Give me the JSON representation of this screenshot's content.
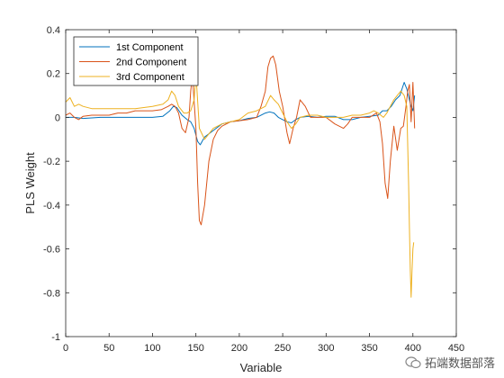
{
  "chart_data": {
    "type": "line",
    "title": "",
    "xlabel": "Variable",
    "ylabel": "PLS Weight",
    "xlim": [
      0,
      450
    ],
    "ylim": [
      -1,
      0.4
    ],
    "xticks": [
      0,
      50,
      100,
      150,
      200,
      250,
      300,
      350,
      400,
      450
    ],
    "yticks": [
      -1,
      -0.8,
      -0.6,
      -0.4,
      -0.2,
      0,
      0.2,
      0.4
    ],
    "xtick_labels": [
      "0",
      "50",
      "100",
      "150",
      "200",
      "250",
      "300",
      "350",
      "400",
      "450"
    ],
    "ytick_labels": [
      "-1",
      "-0.8",
      "-0.6",
      "-0.4",
      "-0.2",
      "0",
      "0.2",
      "0.4"
    ],
    "grid": false,
    "legend_position": "top-left",
    "series": [
      {
        "name": "1st Component",
        "color": "#0072BD",
        "x": [
          0,
          10,
          20,
          40,
          60,
          80,
          100,
          112,
          120,
          124,
          128,
          134,
          140,
          144,
          148,
          152,
          155,
          160,
          170,
          180,
          190,
          200,
          210,
          220,
          230,
          235,
          240,
          245,
          250,
          255,
          260,
          265,
          270,
          280,
          290,
          300,
          310,
          320,
          330,
          340,
          350,
          360,
          365,
          370,
          375,
          380,
          385,
          390,
          393,
          396,
          398,
          400,
          402
        ],
        "y": [
          0,
          0,
          -0.005,
          0,
          0,
          0,
          0,
          0.005,
          0.03,
          0.05,
          0.045,
          0.01,
          -0.01,
          -0.02,
          -0.05,
          -0.11,
          -0.125,
          -0.09,
          -0.06,
          -0.03,
          -0.02,
          -0.015,
          -0.005,
          0,
          0.02,
          0.025,
          0.02,
          0.0,
          -0.01,
          -0.02,
          -0.025,
          -0.01,
          0,
          0.005,
          0,
          0.005,
          0.005,
          -0.01,
          -0.01,
          0,
          0.005,
          0.01,
          0.03,
          0.03,
          0.05,
          0.08,
          0.1,
          0.16,
          0.13,
          0.08,
          0.05,
          0.03,
          0.1
        ]
      },
      {
        "name": "2nd Component",
        "color": "#D95319",
        "x": [
          0,
          5,
          10,
          15,
          20,
          30,
          40,
          50,
          60,
          70,
          80,
          90,
          100,
          110,
          118,
          122,
          126,
          130,
          134,
          138,
          142,
          144,
          146,
          150,
          152,
          154,
          156,
          160,
          165,
          170,
          175,
          180,
          190,
          200,
          210,
          220,
          225,
          230,
          233,
          236,
          239,
          242,
          246,
          250,
          255,
          258,
          262,
          266,
          270,
          276,
          282,
          288,
          295,
          300,
          310,
          320,
          325,
          330,
          340,
          350,
          358,
          362,
          365,
          368,
          371,
          374,
          378,
          382,
          386,
          389,
          392,
          394,
          396,
          398,
          400,
          402
        ],
        "y": [
          0.01,
          0.02,
          0.0,
          -0.01,
          0.005,
          0.01,
          0.01,
          0.01,
          0.02,
          0.02,
          0.03,
          0.03,
          0.03,
          0.035,
          0.05,
          0.06,
          0.05,
          0.02,
          -0.05,
          -0.07,
          0.0,
          0.12,
          0.19,
          -0.05,
          -0.3,
          -0.47,
          -0.49,
          -0.4,
          -0.2,
          -0.1,
          -0.06,
          -0.04,
          -0.02,
          -0.015,
          -0.01,
          0.0,
          0.05,
          0.12,
          0.23,
          0.27,
          0.28,
          0.24,
          0.12,
          0.05,
          -0.07,
          -0.12,
          -0.05,
          0.0,
          0.08,
          0.05,
          0.0,
          0.0,
          0.0,
          0.0,
          -0.03,
          -0.05,
          -0.03,
          0.0,
          0.0,
          0.0,
          0.02,
          -0.02,
          -0.12,
          -0.3,
          -0.37,
          -0.2,
          -0.04,
          -0.15,
          -0.05,
          -0.04,
          0.05,
          0.12,
          0.15,
          -0.02,
          0.16,
          -0.05
        ]
      },
      {
        "name": "3rd Component",
        "color": "#EDB120",
        "x": [
          0,
          5,
          10,
          15,
          20,
          30,
          40,
          60,
          80,
          100,
          112,
          118,
          122,
          126,
          130,
          136,
          140,
          144,
          148,
          150,
          154,
          160,
          170,
          180,
          190,
          200,
          210,
          220,
          230,
          236,
          240,
          245,
          250,
          255,
          260,
          265,
          270,
          280,
          290,
          300,
          310,
          320,
          330,
          340,
          350,
          355,
          360,
          366,
          370,
          374,
          378,
          382,
          386,
          390,
          393,
          395,
          396,
          397,
          398,
          399,
          400,
          401
        ],
        "y": [
          0.07,
          0.09,
          0.05,
          0.06,
          0.05,
          0.04,
          0.04,
          0.04,
          0.04,
          0.05,
          0.06,
          0.08,
          0.12,
          0.1,
          0.05,
          0.02,
          0.02,
          0.03,
          0.08,
          0.2,
          -0.05,
          -0.1,
          -0.05,
          -0.03,
          -0.02,
          -0.01,
          0.02,
          0.03,
          0.05,
          0.1,
          0.08,
          0.06,
          0.02,
          -0.02,
          -0.05,
          -0.03,
          0.0,
          0.01,
          0.01,
          0.0,
          0.0,
          0.0,
          0.01,
          0.01,
          0.02,
          0.03,
          0.02,
          0.0,
          0.02,
          0.05,
          0.08,
          0.1,
          0.12,
          0.1,
          0.05,
          -0.3,
          -0.5,
          -0.7,
          -0.82,
          -0.7,
          -0.6,
          -0.57
        ]
      }
    ]
  },
  "watermark": {
    "text": "拓端数据部落"
  }
}
